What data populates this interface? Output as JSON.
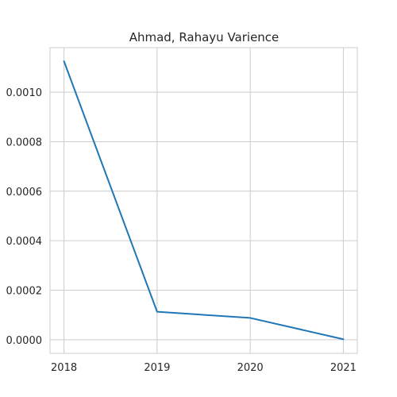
{
  "chart_data": {
    "type": "line",
    "title": "Ahmad, Rahayu Varience",
    "xlabel": "",
    "ylabel": "",
    "x": [
      "2018",
      "2019",
      "2020",
      "2021"
    ],
    "series": [
      {
        "values": [
          0.001125,
          0.000113,
          8.8e-05,
          2e-06
        ],
        "color": "#1f77b4"
      }
    ],
    "xlim": [
      2017.85,
      2021.15
    ],
    "ylim": [
      -5.5e-05,
      0.00118
    ],
    "yticks": [
      0.0,
      0.0002,
      0.0004,
      0.0006,
      0.0008,
      0.001
    ],
    "ytick_labels": [
      "0.0000",
      "0.0002",
      "0.0004",
      "0.0006",
      "0.0008",
      "0.0010"
    ],
    "grid": true,
    "background_color": "#ffffff",
    "grid_color": "#cccccc"
  }
}
